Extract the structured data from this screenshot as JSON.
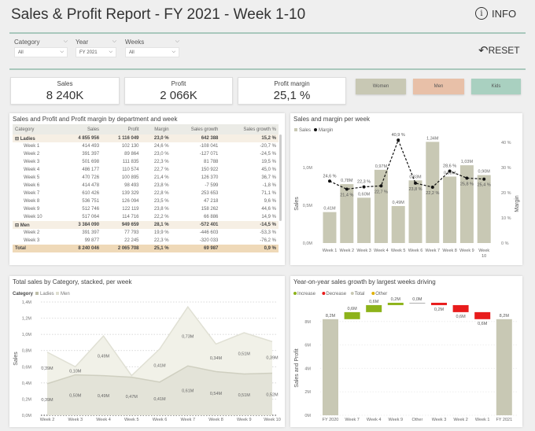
{
  "header": {
    "title": "Sales & Profit Report - FY 2021 - Week 1-10",
    "info_label": "INFO",
    "reset_label": "RESET"
  },
  "filters": [
    {
      "label": "Category",
      "value": "All"
    },
    {
      "label": "Year",
      "value": "FY 2021"
    },
    {
      "label": "Weeks",
      "value": "All"
    }
  ],
  "kpis": [
    {
      "label": "Sales",
      "value": "8 240K"
    },
    {
      "label": "Profit",
      "value": "2 066K"
    },
    {
      "label": "Profit margin",
      "value": "25,1 %"
    }
  ],
  "segments": [
    {
      "label": "Women",
      "color": "#c8c8b4"
    },
    {
      "label": "Men",
      "color": "#e8c0a8"
    },
    {
      "label": "Kids",
      "color": "#a9d0c0"
    }
  ],
  "table": {
    "title": "Sales and Profit and Profit margin by department and week",
    "columns": [
      "Category",
      "Sales",
      "Profit",
      "Margin",
      "Sales growth",
      "Sales growth %"
    ],
    "rows": [
      {
        "type": "group",
        "cells": [
          "Ladies",
          "4 855 956",
          "1 116 049",
          "23,0 %",
          "642 388",
          "15,2 %"
        ]
      },
      {
        "type": "row",
        "cells": [
          "Week 1",
          "414 493",
          "102 130",
          "24,6 %",
          "-108 041",
          "-20,7 %"
        ]
      },
      {
        "type": "row",
        "cells": [
          "Week 2",
          "391 397",
          "89 864",
          "23,0 %",
          "-127 071",
          "-24,5 %"
        ]
      },
      {
        "type": "row",
        "cells": [
          "Week 3",
          "501 698",
          "111 835",
          "22,3 %",
          "81 788",
          "19,5 %"
        ]
      },
      {
        "type": "row",
        "cells": [
          "Week 4",
          "486 177",
          "110 574",
          "22,7 %",
          "150 922",
          "45,0 %"
        ]
      },
      {
        "type": "row",
        "cells": [
          "Week 5",
          "470 726",
          "100 895",
          "21,4 %",
          "126 370",
          "36,7 %"
        ]
      },
      {
        "type": "row",
        "cells": [
          "Week 6",
          "414 478",
          "98 493",
          "23,8 %",
          "-7 599",
          "-1,8 %"
        ]
      },
      {
        "type": "row",
        "cells": [
          "Week 7",
          "610 426",
          "139 329",
          "22,8 %",
          "253 653",
          "71,1 %"
        ]
      },
      {
        "type": "row",
        "cells": [
          "Week 8",
          "536 751",
          "126 094",
          "23,5 %",
          "47 218",
          "9,6 %"
        ]
      },
      {
        "type": "row",
        "cells": [
          "Week 9",
          "512 746",
          "122 119",
          "23,8 %",
          "158 262",
          "44,6 %"
        ]
      },
      {
        "type": "row",
        "cells": [
          "Week 10",
          "517 064",
          "114 716",
          "22,2 %",
          "66 886",
          "14,9 %"
        ]
      },
      {
        "type": "group",
        "cells": [
          "Men",
          "3 384 090",
          "949 659",
          "28,1 %",
          "-572 401",
          "-14,5 %"
        ]
      },
      {
        "type": "row",
        "cells": [
          "Week 2",
          "391 397",
          "77 793",
          "19,9 %",
          "-446 603",
          "-53,3 %"
        ]
      },
      {
        "type": "row",
        "cells": [
          "Week 3",
          "99 877",
          "22 245",
          "22,3 %",
          "-320 033",
          "-76,2 %"
        ]
      }
    ],
    "total": [
      "Total",
      "8 240 046",
      "2 065 708",
      "25,1 %",
      "69 987",
      "0,9 %"
    ]
  },
  "chart_data": [
    {
      "type": "bar+line",
      "title": "Sales and margin per week",
      "categories": [
        "Week 1",
        "Week 2",
        "Week 3",
        "Week 4",
        "Week 5",
        "Week 6",
        "Week 7",
        "Week 8",
        "Week 9",
        "Week 10"
      ],
      "series": [
        {
          "name": "Sales",
          "type": "bar",
          "values": [
            0.41,
            0.78,
            0.6,
            0.97,
            0.49,
            0.83,
            1.34,
            0.88,
            1.03,
            0.9
          ],
          "labels": [
            "0,41M",
            "0,78M",
            "0,60M",
            "0,97M",
            "0,49M",
            "0,83M",
            "1,34M",
            "0,88M",
            "1,03M",
            "0,90M"
          ],
          "color": "#c8c8b4"
        },
        {
          "name": "Margin",
          "type": "line",
          "values": [
            24.6,
            21.4,
            22.3,
            22.7,
            40.9,
            23.8,
            22.2,
            28.6,
            25.8,
            25.4
          ],
          "labels": [
            "24,6 %",
            "21,4 %",
            "22,3 %",
            "22,7 %",
            "40,9 %",
            "23,8 %",
            "22,2 %",
            "28,6 %",
            "25,8 %",
            "25,4 %"
          ],
          "color": "#111111"
        }
      ],
      "ylabel": "Sales",
      "y2label": "Margin",
      "yticks": [
        "0,0M",
        "0,5M",
        "1,0M"
      ],
      "ylim": [
        0,
        1.4
      ],
      "y2ticks": [
        "0 %",
        "10 %",
        "20 %",
        "30 %",
        "40 %"
      ],
      "y2lim": [
        0,
        43
      ],
      "legend": "top-left"
    },
    {
      "type": "area",
      "stacked": true,
      "title": "Total sales by Category, stacked, per week",
      "legend_title": "Category",
      "categories": [
        "Week 2",
        "Week 3",
        "Week 4",
        "Week 5",
        "Week 6",
        "Week 7",
        "Week 8",
        "Week 9",
        "Week 10"
      ],
      "series": [
        {
          "name": "Ladies",
          "values": [
            0.39,
            0.5,
            0.49,
            0.47,
            0.41,
            0.61,
            0.54,
            0.51,
            0.52
          ],
          "labels": [
            "0,39M",
            "0,50M",
            "0,49M",
            "0,47M",
            "0,41M",
            "0,61M",
            "0,54M",
            "0,51M",
            "0,52M"
          ],
          "color": "#d9d9cc"
        },
        {
          "name": "Men",
          "values": [
            0.39,
            0.1,
            0.49,
            0.02,
            0.41,
            0.73,
            0.34,
            0.51,
            0.39
          ],
          "labels": [
            "0,39M",
            "0,10M",
            "0,49M",
            "",
            "0,41M",
            "0,73M",
            "0,34M",
            "0,51M",
            "0,39M"
          ],
          "color": "#eeeee4"
        }
      ],
      "ylabel": "Sales",
      "yticks": [
        "0,0M",
        "0,2M",
        "0,4M",
        "0,6M",
        "0,8M",
        "1,0M",
        "1,2M",
        "1,4M"
      ],
      "ylim": [
        0,
        1.4
      ],
      "grid": true,
      "legend": "top-left"
    },
    {
      "type": "waterfall",
      "title": "Year-on-year sales growth by largest weeks driving",
      "legend": [
        "Increase",
        "Decrease",
        "Total",
        "Other"
      ],
      "legend_colors": [
        "#8db31a",
        "#e81c1c",
        "#c8c8b4",
        "#e0b000"
      ],
      "categories": [
        "FY 2020",
        "Week 7",
        "Week 4",
        "Week 9",
        "Other",
        "Week 3",
        "Week 2",
        "Week 1",
        "FY 2021"
      ],
      "values": [
        8.2,
        0.6,
        0.6,
        0.2,
        0.0,
        -0.2,
        -0.6,
        -0.6,
        8.2
      ],
      "kinds": [
        "total",
        "increase",
        "increase",
        "increase",
        "other",
        "decrease",
        "decrease",
        "decrease",
        "total"
      ],
      "labels": [
        "8,2M",
        "0,6M",
        "0,6M",
        "0,2M",
        "0,0M",
        "0,2M",
        "0,6M",
        "0,6M",
        "8,2M"
      ],
      "ylabel": "Sales and Profit",
      "yticks": [
        "0M",
        "2M",
        "4M",
        "6M",
        "8M"
      ],
      "ylim": [
        0,
        9.8
      ]
    }
  ]
}
